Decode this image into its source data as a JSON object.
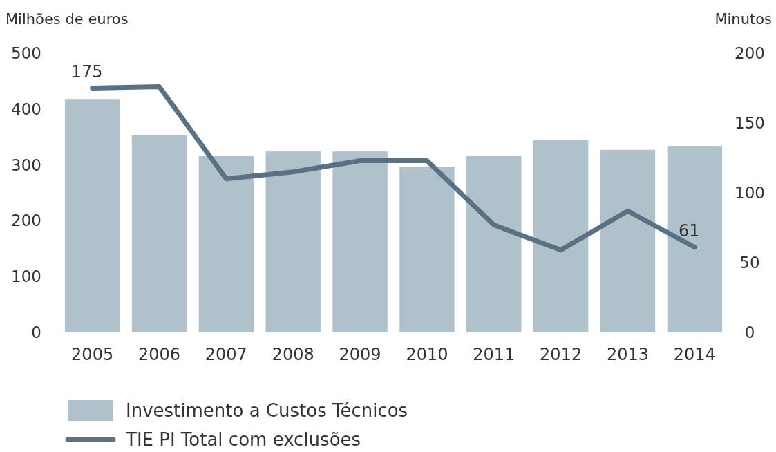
{
  "chart_data": {
    "type": "bar",
    "ylabel": "Milhões de euros",
    "y2label": "Minutos",
    "categories": [
      "2005",
      "2006",
      "2007",
      "2008",
      "2009",
      "2010",
      "2011",
      "2012",
      "2013",
      "2014"
    ],
    "series": [
      {
        "name": "Investimento a Custos Técnicos",
        "color": "#b0c1cc",
        "values": [
          418,
          353,
          316,
          324,
          324,
          297,
          316,
          344,
          327,
          334
        ]
      },
      {
        "name": "TIE PI Total com exclusões",
        "type": "line",
        "axis": "y2",
        "color": "#5a7184",
        "values": [
          175,
          176,
          110,
          115,
          123,
          123,
          77,
          59,
          87,
          61
        ],
        "value_labels": [
          "175",
          null,
          null,
          null,
          null,
          null,
          null,
          null,
          null,
          "61"
        ]
      }
    ],
    "ylim": [
      0,
      500
    ],
    "yticks": [
      0,
      100,
      200,
      300,
      400,
      500
    ],
    "y2lim": [
      0,
      200
    ],
    "y2ticks": [
      0,
      50,
      100,
      150,
      200
    ],
    "grid": false,
    "legend": "bottom",
    "marker": "none",
    "line_style": "solid"
  }
}
